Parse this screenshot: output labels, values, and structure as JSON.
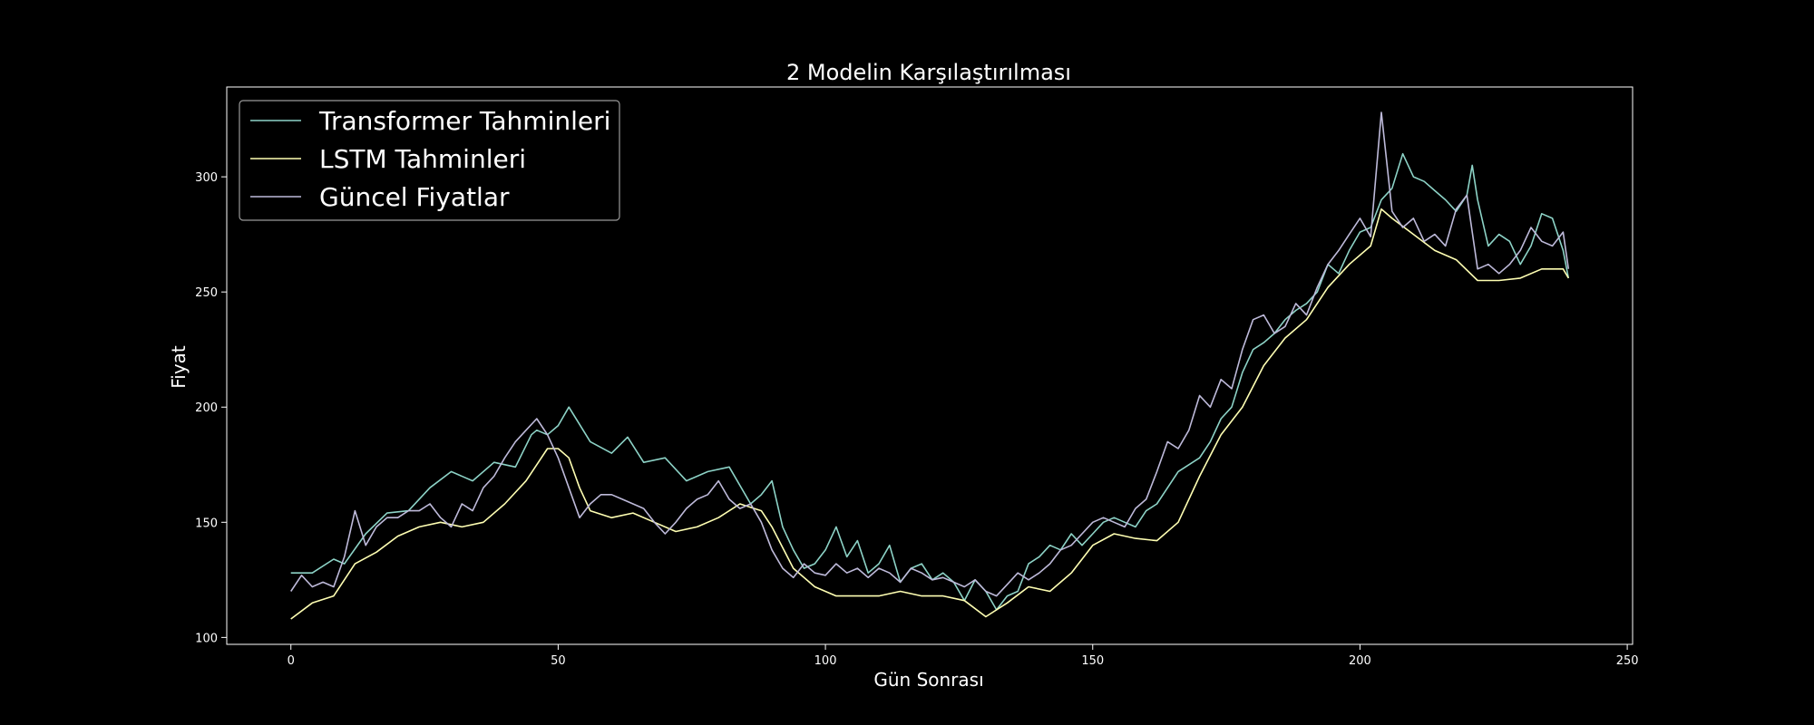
{
  "chart_data": {
    "type": "line",
    "title": "2 Modelin Karşılaştırılması",
    "xlabel": "Gün Sonrası",
    "ylabel": "Fiyat",
    "xlim": [
      -12,
      251
    ],
    "ylim": [
      97,
      339
    ],
    "xticks": [
      0,
      50,
      100,
      150,
      200,
      250
    ],
    "yticks": [
      100,
      150,
      200,
      250,
      300
    ],
    "grid": false,
    "legend_position": "top-left",
    "background": "#000000",
    "series": [
      {
        "name": "Transformer Tahminleri",
        "color": "#8dd3c7",
        "x": [
          0,
          4,
          8,
          10,
          14,
          18,
          22,
          26,
          30,
          34,
          38,
          42,
          45,
          46,
          48,
          50,
          52,
          56,
          60,
          63,
          66,
          70,
          74,
          78,
          82,
          86,
          88,
          90,
          92,
          94,
          96,
          98,
          100,
          102,
          104,
          106,
          108,
          110,
          112,
          114,
          116,
          118,
          120,
          122,
          124,
          126,
          128,
          130,
          132,
          134,
          136,
          138,
          140,
          142,
          144,
          146,
          148,
          150,
          152,
          154,
          156,
          158,
          160,
          162,
          164,
          166,
          168,
          170,
          172,
          174,
          176,
          178,
          180,
          182,
          184,
          186,
          188,
          190,
          192,
          194,
          196,
          198,
          200,
          202,
          204,
          206,
          208,
          210,
          212,
          214,
          216,
          218,
          220,
          221,
          222,
          224,
          226,
          228,
          230,
          232,
          234,
          236,
          238,
          239
        ],
        "values": [
          128,
          128,
          134,
          132,
          145,
          154,
          155,
          165,
          172,
          168,
          176,
          174,
          188,
          190,
          188,
          192,
          200,
          185,
          180,
          187,
          176,
          178,
          168,
          172,
          174,
          158,
          162,
          168,
          148,
          138,
          130,
          132,
          138,
          148,
          135,
          142,
          128,
          132,
          140,
          124,
          130,
          132,
          125,
          128,
          124,
          116,
          125,
          120,
          112,
          118,
          120,
          132,
          135,
          140,
          138,
          145,
          140,
          145,
          150,
          152,
          150,
          148,
          155,
          158,
          165,
          172,
          175,
          178,
          185,
          195,
          200,
          215,
          225,
          228,
          232,
          238,
          242,
          245,
          250,
          262,
          258,
          268,
          276,
          278,
          290,
          295,
          310,
          300,
          298,
          294,
          290,
          285,
          292,
          305,
          290,
          270,
          275,
          272,
          262,
          270,
          284,
          282,
          268,
          256
        ]
      },
      {
        "name": "LSTM Tahminleri",
        "color": "#ffffb3",
        "x": [
          0,
          4,
          8,
          12,
          16,
          20,
          24,
          28,
          32,
          36,
          40,
          44,
          48,
          50,
          52,
          54,
          56,
          60,
          64,
          68,
          72,
          76,
          80,
          84,
          88,
          90,
          94,
          98,
          102,
          106,
          110,
          114,
          118,
          122,
          126,
          130,
          134,
          138,
          142,
          146,
          150,
          154,
          158,
          162,
          166,
          170,
          174,
          178,
          182,
          186,
          190,
          194,
          198,
          202,
          204,
          206,
          210,
          214,
          218,
          222,
          226,
          230,
          234,
          238,
          239
        ],
        "values": [
          108,
          115,
          118,
          132,
          137,
          144,
          148,
          150,
          148,
          150,
          158,
          168,
          182,
          182,
          178,
          165,
          155,
          152,
          154,
          150,
          146,
          148,
          152,
          158,
          155,
          148,
          130,
          122,
          118,
          118,
          118,
          120,
          118,
          118,
          116,
          109,
          115,
          122,
          120,
          128,
          140,
          145,
          143,
          142,
          150,
          170,
          188,
          200,
          218,
          230,
          238,
          252,
          262,
          270,
          286,
          282,
          275,
          268,
          264,
          255,
          255,
          256,
          260,
          260,
          256
        ]
      },
      {
        "name": "Güncel Fiyatlar",
        "color": "#bebada",
        "x": [
          0,
          2,
          4,
          6,
          8,
          10,
          12,
          14,
          16,
          18,
          20,
          22,
          24,
          26,
          28,
          30,
          32,
          34,
          36,
          38,
          40,
          42,
          44,
          46,
          48,
          50,
          52,
          54,
          56,
          58,
          60,
          62,
          64,
          66,
          68,
          70,
          72,
          74,
          76,
          78,
          80,
          82,
          84,
          86,
          88,
          90,
          92,
          94,
          96,
          98,
          100,
          102,
          104,
          106,
          108,
          110,
          112,
          114,
          116,
          118,
          120,
          122,
          124,
          126,
          128,
          130,
          132,
          134,
          136,
          138,
          140,
          142,
          144,
          146,
          148,
          150,
          152,
          154,
          156,
          158,
          160,
          162,
          164,
          166,
          168,
          170,
          172,
          174,
          176,
          178,
          180,
          182,
          184,
          186,
          188,
          190,
          192,
          194,
          196,
          198,
          200,
          202,
          204,
          206,
          208,
          210,
          212,
          214,
          216,
          218,
          220,
          222,
          224,
          226,
          228,
          230,
          232,
          234,
          236,
          238,
          239
        ],
        "values": [
          120,
          127,
          122,
          124,
          122,
          135,
          155,
          140,
          148,
          152,
          152,
          155,
          155,
          158,
          152,
          148,
          158,
          155,
          165,
          170,
          178,
          185,
          190,
          195,
          188,
          178,
          165,
          152,
          158,
          162,
          162,
          160,
          158,
          156,
          150,
          145,
          150,
          156,
          160,
          162,
          168,
          160,
          156,
          158,
          150,
          138,
          130,
          126,
          132,
          128,
          127,
          132,
          128,
          130,
          126,
          130,
          128,
          124,
          130,
          128,
          125,
          126,
          124,
          122,
          125,
          120,
          118,
          123,
          128,
          125,
          128,
          132,
          138,
          140,
          145,
          150,
          152,
          150,
          148,
          156,
          160,
          172,
          185,
          182,
          190,
          205,
          200,
          212,
          208,
          225,
          238,
          240,
          232,
          235,
          245,
          240,
          252,
          262,
          268,
          275,
          282,
          274,
          328,
          285,
          278,
          282,
          272,
          275,
          270,
          286,
          292,
          260,
          262,
          258,
          262,
          268,
          278,
          272,
          270,
          276,
          260
        ]
      }
    ]
  }
}
